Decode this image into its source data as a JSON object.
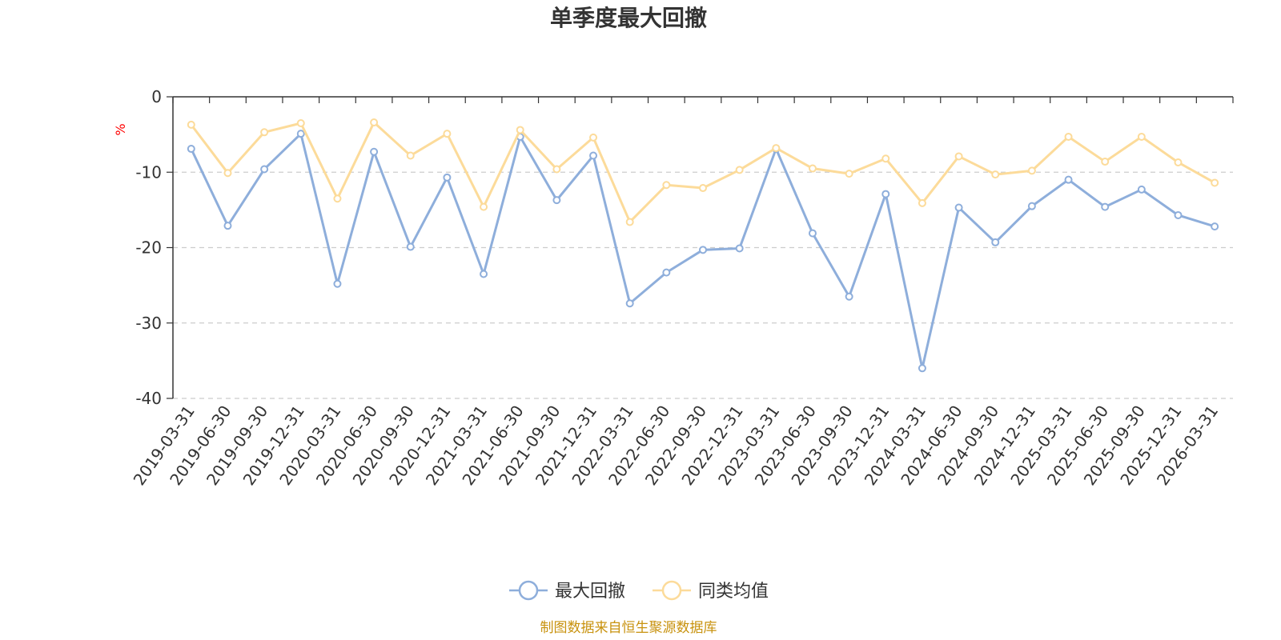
{
  "chart_data": {
    "type": "line",
    "title": "单季度最大回撤",
    "ylabel": "%",
    "xlabel": "",
    "ylim": [
      -40,
      0
    ],
    "yticks": [
      0,
      -10,
      -20,
      -30,
      -40
    ],
    "grid": true,
    "legend_position": "bottom-center",
    "categories": [
      "2019-03-31",
      "2019-06-30",
      "2019-09-30",
      "2019-12-31",
      "2020-03-31",
      "2020-06-30",
      "2020-09-30",
      "2020-12-31",
      "2021-03-31",
      "2021-06-30",
      "2021-09-30",
      "2021-12-31",
      "2022-03-31",
      "2022-06-30",
      "2022-09-30",
      "2022-12-31",
      "2023-03-31",
      "2023-06-30",
      "2023-09-30",
      "2023-12-31",
      "2024-03-31",
      "2024-06-30",
      "2024-09-30",
      "2024-12-31",
      "2025-03-31",
      "2025-06-30",
      "2025-09-30",
      "2025-12-31",
      "2026-03-31"
    ],
    "series": [
      {
        "name": "最大回撤",
        "color": "#8eaedb",
        "values": [
          -6.9,
          -17.1,
          -9.6,
          -4.9,
          -24.8,
          -7.3,
          -19.9,
          -10.7,
          -23.5,
          -5.3,
          -13.7,
          -7.8,
          -27.4,
          -23.3,
          -20.3,
          -20.1,
          -6.9,
          -18.1,
          -26.5,
          -12.9,
          -36.0,
          -14.7,
          -19.3,
          -14.5,
          -11.0,
          -14.6,
          -12.3,
          -15.7,
          -17.2
        ]
      },
      {
        "name": "同类均值",
        "color": "#fcdb9a",
        "values": [
          -3.7,
          -10.1,
          -4.7,
          -3.5,
          -13.5,
          -3.4,
          -7.8,
          -4.9,
          -14.6,
          -4.4,
          -9.6,
          -5.4,
          -16.6,
          -11.7,
          -12.1,
          -9.7,
          -6.8,
          -9.5,
          -10.2,
          -8.2,
          -14.1,
          -7.9,
          -10.3,
          -9.8,
          -5.3,
          -8.6,
          -5.3,
          -8.7,
          -11.4
        ]
      }
    ]
  },
  "footer": {
    "source": "制图数据来自恒生聚源数据库"
  }
}
